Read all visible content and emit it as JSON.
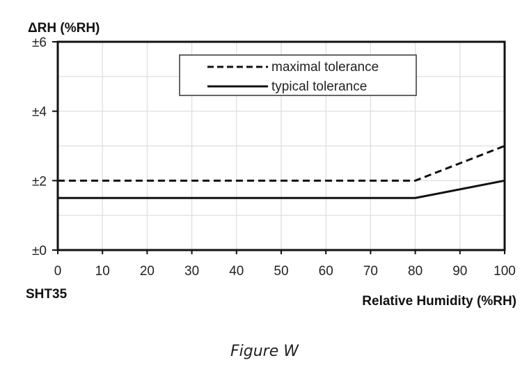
{
  "chart_data": {
    "type": "line",
    "ylabel": "ΔRH (%RH)",
    "xlabel": "Relative Humidity (%RH)",
    "sensor_label": "SHT35",
    "xlim": [
      0,
      100
    ],
    "ylim": [
      0,
      6
    ],
    "x_ticks": [
      "0",
      "10",
      "20",
      "30",
      "40",
      "50",
      "60",
      "70",
      "80",
      "90",
      "100"
    ],
    "y_ticks": [
      "±0",
      "±2",
      "±4",
      "±6"
    ],
    "grid": true,
    "legend_position": "top-right",
    "series": [
      {
        "name": "maximal tolerance",
        "style": "dashed",
        "x": [
          0,
          80,
          100
        ],
        "y": [
          2,
          2,
          3
        ]
      },
      {
        "name": "typical tolerance",
        "style": "solid",
        "x": [
          0,
          80,
          100
        ],
        "y": [
          1.5,
          1.5,
          2
        ]
      }
    ]
  },
  "caption": "Figure W"
}
